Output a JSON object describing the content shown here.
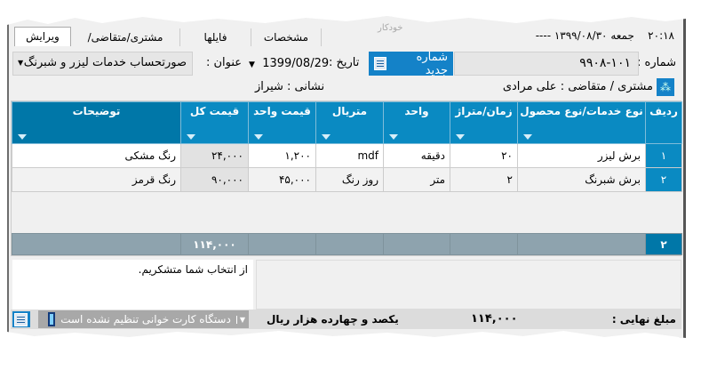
{
  "window": {
    "title_ghost": "خودکار"
  },
  "tabs": [
    {
      "label": "ویرایش",
      "active": true
    },
    {
      "label": "مشتری/متقاضی/پروژه"
    },
    {
      "label": "فایلها"
    },
    {
      "label": "مشخصات"
    }
  ],
  "clock": {
    "time": "۲۰:۱۸",
    "date": "جمعه  ۱۳۹۹/۰۸/۳۰ ----"
  },
  "form": {
    "number_label": "شماره :",
    "number_value": "۹۹۰۸-۱۰۱",
    "new_number_button": "شماره جدید",
    "date_label": "تاریخ :",
    "date_value": "1399/08/29",
    "title_label": "عنوان :",
    "title_value": "صورتحساب خدمات لیزر و شبرنگ",
    "customer": "مشتری / متقاضی :  علی مرادی",
    "address": "نشانی : شیراز"
  },
  "table": {
    "headers": [
      "ردیف",
      "نوع خدمات/نوع محصول",
      "زمان/متراژ",
      "واحد",
      "متریال",
      "قیمت واحد",
      "قیمت کل",
      "توضیحات"
    ],
    "rows": [
      [
        "۱",
        "برش لیزر",
        "۲۰",
        "دقیقه",
        "mdf",
        "۱,۲۰۰",
        "۲۴,۰۰۰",
        "رنگ مشکی"
      ],
      [
        "۲",
        "برش شبرنگ",
        "۲",
        "متر",
        "روز رنگ",
        "۴۵,۰۰۰",
        "۹۰,۰۰۰",
        "رنگ قرمز"
      ]
    ],
    "footer": {
      "count": "۲",
      "total": "۱۱۴,۰۰۰"
    }
  },
  "notes": "از انتخاب شما متشکریم.",
  "status": {
    "final_label": "مبلغ نهایی :",
    "final_amount": "۱۱۴,۰۰۰",
    "amount_words": "یکصد و چهارده هزار  ریال",
    "card_reader": "دستگاه کارت خوانی تنظیم نشده است"
  },
  "colors": {
    "header": "#0a8ac2",
    "button": "#1482c8",
    "footer": "#8ea3ae"
  }
}
